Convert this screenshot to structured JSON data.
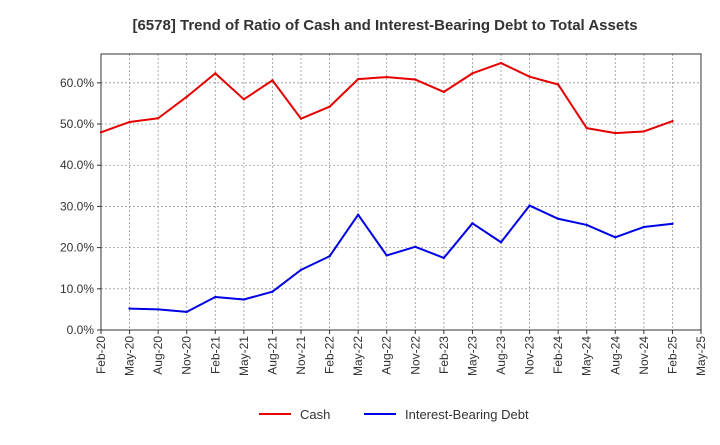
{
  "chart_data": {
    "type": "line",
    "title": "[6578]  Trend of Ratio of Cash and Interest-Bearing Debt to Total Assets",
    "xlabel": "",
    "ylabel": "",
    "ylim": [
      0,
      67
    ],
    "yticks": [
      0,
      10,
      20,
      30,
      40,
      50,
      60
    ],
    "ytick_labels": [
      "0.0%",
      "10.0%",
      "20.0%",
      "30.0%",
      "40.0%",
      "50.0%",
      "60.0%"
    ],
    "x_tick_labels": [
      "Feb-20",
      "May-20",
      "Aug-20",
      "Nov-20",
      "Feb-21",
      "May-21",
      "Aug-21",
      "Nov-21",
      "Feb-22",
      "May-22",
      "Aug-22",
      "Nov-22",
      "Feb-23",
      "May-23",
      "Aug-23",
      "Nov-23",
      "Feb-24",
      "May-24",
      "Aug-24",
      "Nov-24",
      "Feb-25",
      "May-25"
    ],
    "grid": true,
    "legend_position": "bottom-center",
    "series": [
      {
        "name": "Cash",
        "color": "#e60000",
        "values": [
          48.0,
          50.5,
          51.4,
          56.6,
          62.3,
          56.0,
          60.6,
          51.3,
          54.2,
          60.9,
          61.4,
          60.8,
          57.8,
          62.3,
          64.8,
          61.5,
          59.6,
          49.0,
          47.8,
          48.2,
          50.7,
          null
        ]
      },
      {
        "name": "Interest-Bearing Debt",
        "color": "#0000e6",
        "values": [
          null,
          5.2,
          5.0,
          4.4,
          8.0,
          7.4,
          9.3,
          14.6,
          17.9,
          28.0,
          18.1,
          20.2,
          17.5,
          25.9,
          21.3,
          30.2,
          27.0,
          25.5,
          22.5,
          25.0,
          25.8,
          null
        ]
      }
    ]
  }
}
